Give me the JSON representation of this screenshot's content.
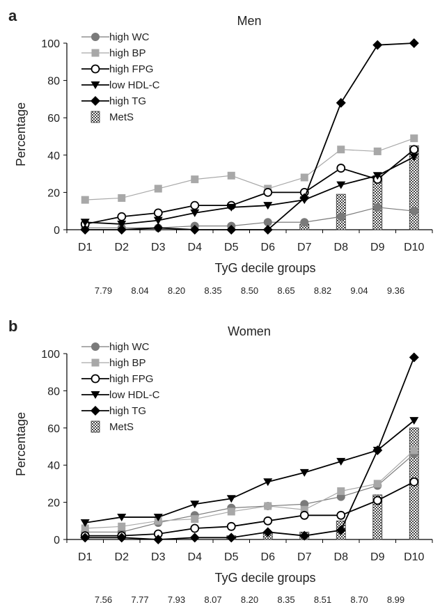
{
  "chart_data": [
    {
      "panel_label": "a",
      "type": "line",
      "title": "Men",
      "xlabel": "TyG decile groups",
      "ylabel": "Percentage",
      "ylim": [
        0,
        100
      ],
      "yticks": [
        0,
        20,
        40,
        60,
        80,
        100
      ],
      "categories": [
        "D1",
        "D2",
        "D3",
        "D4",
        "D5",
        "D6",
        "D7",
        "D8",
        "D9",
        "D10"
      ],
      "cutoffs": [
        "7.79",
        "8.04",
        "8.20",
        "8.35",
        "8.50",
        "8.65",
        "8.82",
        "9.04",
        "9.36"
      ],
      "legend_position": "top-left",
      "series": [
        {
          "name": "high WC",
          "marker": "circle-filled",
          "color": "#7a7a7a",
          "values": [
            1,
            1,
            1,
            2,
            2,
            4,
            4,
            7,
            12,
            10
          ]
        },
        {
          "name": "high BP",
          "marker": "square",
          "color": "#a8a8a8",
          "values": [
            16,
            17,
            22,
            27,
            29,
            22,
            28,
            43,
            42,
            49
          ]
        },
        {
          "name": "high FPG",
          "marker": "circle-open",
          "color": "#000000",
          "values": [
            3,
            7,
            9,
            13,
            13,
            20,
            20,
            33,
            27,
            43
          ]
        },
        {
          "name": "low HDL-C",
          "marker": "triangle-down",
          "color": "#000000",
          "values": [
            4,
            3,
            5,
            9,
            12,
            13,
            16,
            24,
            29,
            39
          ]
        },
        {
          "name": "high TG",
          "marker": "diamond",
          "color": "#000000",
          "values": [
            0,
            0,
            1,
            0,
            0,
            0,
            17,
            68,
            99,
            100
          ]
        }
      ],
      "bars": {
        "name": "MetS",
        "values": [
          0,
          0,
          0,
          0,
          0,
          0,
          3,
          19,
          29,
          45
        ]
      }
    },
    {
      "panel_label": "b",
      "type": "line",
      "title": "Women",
      "xlabel": "TyG decile groups",
      "ylabel": "Percentage",
      "ylim": [
        0,
        100
      ],
      "yticks": [
        0,
        20,
        40,
        60,
        80,
        100
      ],
      "categories": [
        "D1",
        "D2",
        "D3",
        "D4",
        "D5",
        "D6",
        "D7",
        "D8",
        "D9",
        "D10"
      ],
      "cutoffs": [
        "7.56",
        "7.77",
        "7.93",
        "8.07",
        "8.20",
        "8.35",
        "8.51",
        "8.70",
        "8.99"
      ],
      "legend_position": "top-left",
      "series": [
        {
          "name": "high WC",
          "marker": "circle-filled",
          "color": "#7a7a7a",
          "values": [
            4,
            4,
            9,
            13,
            17,
            18,
            19,
            23,
            29,
            46
          ]
        },
        {
          "name": "high BP",
          "marker": "square",
          "color": "#a8a8a8",
          "values": [
            6,
            7,
            10,
            11,
            15,
            18,
            16,
            26,
            30,
            48
          ]
        },
        {
          "name": "high FPG",
          "marker": "circle-open",
          "color": "#000000",
          "values": [
            2,
            2,
            3,
            6,
            7,
            10,
            13,
            13,
            21,
            31
          ]
        },
        {
          "name": "low HDL-C",
          "marker": "triangle-down",
          "color": "#000000",
          "values": [
            9,
            12,
            12,
            19,
            22,
            31,
            36,
            42,
            48,
            64
          ]
        },
        {
          "name": "high TG",
          "marker": "diamond",
          "color": "#000000",
          "values": [
            1,
            1,
            0,
            1,
            1,
            4,
            2,
            5,
            48,
            98
          ]
        }
      ],
      "bars": {
        "name": "MetS",
        "values": [
          0,
          0,
          0,
          0,
          2,
          4,
          4,
          10,
          24,
          60
        ]
      }
    }
  ]
}
